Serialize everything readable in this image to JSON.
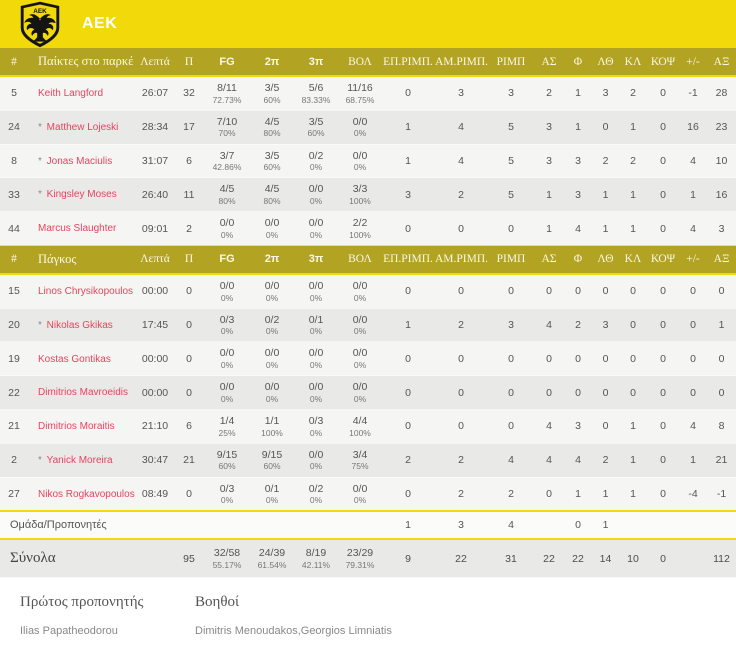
{
  "team": {
    "name": "AEK"
  },
  "colors": {
    "accent_yellow": "#f1d90a",
    "header_olive": "#b2a322",
    "player_name_red": "#e8435f"
  },
  "columns": [
    "#",
    "Παίκτες στο παρκέ",
    "Λεπτά",
    "Π",
    "FG",
    "2π",
    "3π",
    "ΒΟΛ",
    "ΕΠ.ΡΙΜΠ.",
    "ΑΜ.ΡΙΜΠ.",
    "ΡΙΜΠ",
    "ΑΣ",
    "Φ",
    "ΛΘ",
    "ΚΛ",
    "ΚΟΨ",
    "+/-",
    "ΑΞ"
  ],
  "col_keys": [
    "num",
    "players-on-court",
    "minutes",
    "points",
    "fg",
    "2pt",
    "3pt",
    "ft",
    "off-reb",
    "def-reb",
    "reb",
    "ast",
    "fouls",
    "turnovers",
    "steals",
    "blocks",
    "plus-minus",
    "rank"
  ],
  "stat_keys": [
    "oreb",
    "dreb",
    "reb",
    "ast",
    "fouls",
    "to",
    "stl",
    "blk",
    "plusminus",
    "rank"
  ],
  "bench_label": "Πάγκος",
  "starters": [
    {
      "num": "5",
      "starter": false,
      "name": "Keith Langford",
      "min": "26:07",
      "pts": "32",
      "shots": [
        [
          "8/11",
          "72.73%"
        ],
        [
          "3/5",
          "60%"
        ],
        [
          "5/6",
          "83.33%"
        ],
        [
          "11/16",
          "68.75%"
        ]
      ],
      "stats": [
        "0",
        "3",
        "3",
        "2",
        "1",
        "3",
        "2",
        "0",
        "-1",
        "28"
      ]
    },
    {
      "num": "24",
      "starter": true,
      "name": "Matthew Lojeski",
      "min": "28:34",
      "pts": "17",
      "shots": [
        [
          "7/10",
          "70%"
        ],
        [
          "4/5",
          "80%"
        ],
        [
          "3/5",
          "60%"
        ],
        [
          "0/0",
          "0%"
        ]
      ],
      "stats": [
        "1",
        "4",
        "5",
        "3",
        "1",
        "0",
        "1",
        "0",
        "16",
        "23"
      ]
    },
    {
      "num": "8",
      "starter": true,
      "name": "Jonas Maciulis",
      "min": "31:07",
      "pts": "6",
      "shots": [
        [
          "3/7",
          "42.86%"
        ],
        [
          "3/5",
          "60%"
        ],
        [
          "0/2",
          "0%"
        ],
        [
          "0/0",
          "0%"
        ]
      ],
      "stats": [
        "1",
        "4",
        "5",
        "3",
        "3",
        "2",
        "2",
        "0",
        "4",
        "10"
      ]
    },
    {
      "num": "33",
      "starter": true,
      "name": "Kingsley Moses",
      "min": "26:40",
      "pts": "11",
      "shots": [
        [
          "4/5",
          "80%"
        ],
        [
          "4/5",
          "80%"
        ],
        [
          "0/0",
          "0%"
        ],
        [
          "3/3",
          "100%"
        ]
      ],
      "stats": [
        "3",
        "2",
        "5",
        "1",
        "3",
        "1",
        "1",
        "0",
        "1",
        "16"
      ]
    },
    {
      "num": "44",
      "starter": false,
      "name": "Marcus Slaughter",
      "min": "09:01",
      "pts": "2",
      "shots": [
        [
          "0/0",
          "0%"
        ],
        [
          "0/0",
          "0%"
        ],
        [
          "0/0",
          "0%"
        ],
        [
          "2/2",
          "100%"
        ]
      ],
      "stats": [
        "0",
        "0",
        "0",
        "1",
        "4",
        "1",
        "1",
        "0",
        "4",
        "3"
      ]
    }
  ],
  "bench": [
    {
      "num": "15",
      "starter": false,
      "name": "Linos Chrysikopoulos",
      "min": "00:00",
      "pts": "0",
      "shots": [
        [
          "0/0",
          "0%"
        ],
        [
          "0/0",
          "0%"
        ],
        [
          "0/0",
          "0%"
        ],
        [
          "0/0",
          "0%"
        ]
      ],
      "stats": [
        "0",
        "0",
        "0",
        "0",
        "0",
        "0",
        "0",
        "0",
        "0",
        "0"
      ]
    },
    {
      "num": "20",
      "starter": true,
      "name": "Nikolas Gkikas",
      "min": "17:45",
      "pts": "0",
      "shots": [
        [
          "0/3",
          "0%"
        ],
        [
          "0/2",
          "0%"
        ],
        [
          "0/1",
          "0%"
        ],
        [
          "0/0",
          "0%"
        ]
      ],
      "stats": [
        "1",
        "2",
        "3",
        "4",
        "2",
        "3",
        "0",
        "0",
        "0",
        "1"
      ]
    },
    {
      "num": "19",
      "starter": false,
      "name": "Kostas Gontikas",
      "min": "00:00",
      "pts": "0",
      "shots": [
        [
          "0/0",
          "0%"
        ],
        [
          "0/0",
          "0%"
        ],
        [
          "0/0",
          "0%"
        ],
        [
          "0/0",
          "0%"
        ]
      ],
      "stats": [
        "0",
        "0",
        "0",
        "0",
        "0",
        "0",
        "0",
        "0",
        "0",
        "0"
      ]
    },
    {
      "num": "22",
      "starter": false,
      "name": "Dimitrios Mavroeidis",
      "min": "00:00",
      "pts": "0",
      "shots": [
        [
          "0/0",
          "0%"
        ],
        [
          "0/0",
          "0%"
        ],
        [
          "0/0",
          "0%"
        ],
        [
          "0/0",
          "0%"
        ]
      ],
      "stats": [
        "0",
        "0",
        "0",
        "0",
        "0",
        "0",
        "0",
        "0",
        "0",
        "0"
      ]
    },
    {
      "num": "21",
      "starter": false,
      "name": "Dimitrios Moraitis",
      "min": "21:10",
      "pts": "6",
      "shots": [
        [
          "1/4",
          "25%"
        ],
        [
          "1/1",
          "100%"
        ],
        [
          "0/3",
          "0%"
        ],
        [
          "4/4",
          "100%"
        ]
      ],
      "stats": [
        "0",
        "0",
        "0",
        "4",
        "3",
        "0",
        "1",
        "0",
        "4",
        "8"
      ]
    },
    {
      "num": "2",
      "starter": true,
      "name": "Yanick Moreira",
      "min": "30:47",
      "pts": "21",
      "shots": [
        [
          "9/15",
          "60%"
        ],
        [
          "9/15",
          "60%"
        ],
        [
          "0/0",
          "0%"
        ],
        [
          "3/4",
          "75%"
        ]
      ],
      "stats": [
        "2",
        "2",
        "4",
        "4",
        "4",
        "2",
        "1",
        "0",
        "1",
        "21"
      ]
    },
    {
      "num": "27",
      "starter": false,
      "name": "Nikos Rogkavopoulos",
      "min": "08:49",
      "pts": "0",
      "shots": [
        [
          "0/3",
          "0%"
        ],
        [
          "0/1",
          "0%"
        ],
        [
          "0/2",
          "0%"
        ],
        [
          "0/0",
          "0%"
        ]
      ],
      "stats": [
        "0",
        "2",
        "2",
        "0",
        "1",
        "1",
        "1",
        "0",
        "-4",
        "-1"
      ]
    }
  ],
  "team_row": {
    "label": "Ομάδα/Προπονητές",
    "stats": [
      "1",
      "3",
      "4",
      "",
      "0",
      "1",
      "",
      "",
      "",
      ""
    ]
  },
  "totals": {
    "label": "Σύνολα",
    "pts": "95",
    "shots": [
      [
        "32/58",
        "55.17%"
      ],
      [
        "24/39",
        "61.54%"
      ],
      [
        "8/19",
        "42.11%"
      ],
      [
        "23/29",
        "79.31%"
      ]
    ],
    "stats": [
      "9",
      "22",
      "31",
      "22",
      "22",
      "14",
      "10",
      "0",
      "",
      "112"
    ]
  },
  "footer": {
    "head_coach_label": "Πρώτος προπονητής",
    "head_coach": "Ilias Papatheodorou",
    "assistants_label": "Βοηθοί",
    "assistants": "Dimitris Menoudakos,Georgios Limniatis"
  }
}
